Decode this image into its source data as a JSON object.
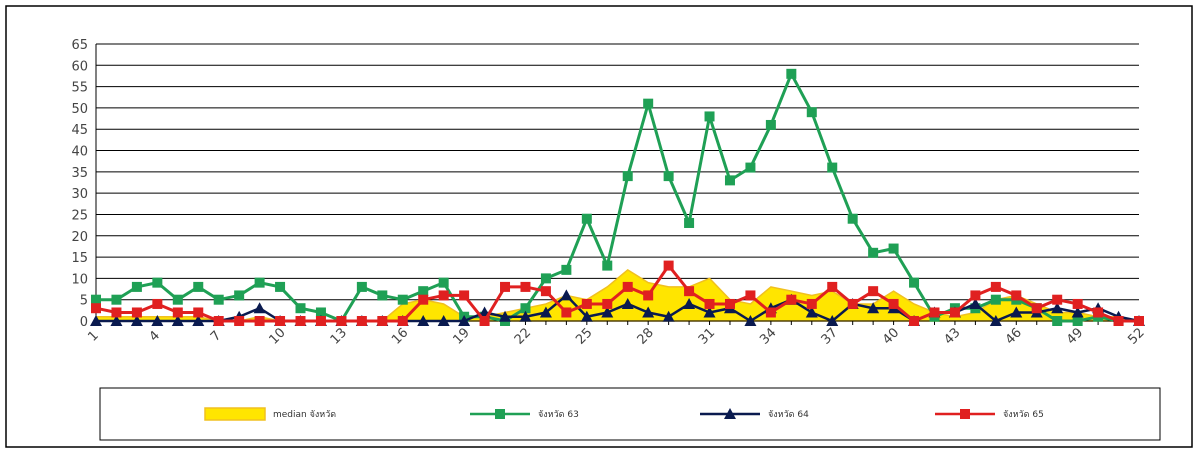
{
  "chart_data": {
    "type": "line",
    "title": "",
    "xlabel": "",
    "ylabel": "",
    "ylim": [
      0,
      65
    ],
    "yticks": [
      0,
      5,
      10,
      15,
      20,
      25,
      30,
      35,
      40,
      45,
      50,
      55,
      60,
      65
    ],
    "x": [
      1,
      2,
      3,
      4,
      5,
      6,
      7,
      8,
      9,
      10,
      11,
      12,
      13,
      14,
      15,
      16,
      17,
      18,
      19,
      20,
      21,
      22,
      23,
      24,
      25,
      26,
      27,
      28,
      29,
      30,
      31,
      32,
      33,
      34,
      35,
      36,
      37,
      38,
      39,
      40,
      41,
      42,
      43,
      44,
      45,
      46,
      47,
      48,
      49,
      50,
      51,
      52
    ],
    "xtick_labels": [
      "1",
      "4",
      "7",
      "10",
      "13",
      "16",
      "19",
      "22",
      "25",
      "28",
      "31",
      "34",
      "37",
      "40",
      "43",
      "46",
      "49",
      "52"
    ],
    "grid": true,
    "legend_position": "bottom",
    "series": [
      {
        "name": "median จังหวัด",
        "kind": "area",
        "color": "#FFE500",
        "edge_color": "#F0C020",
        "values": [
          1,
          1,
          1,
          1,
          1,
          1,
          0,
          0,
          1,
          0,
          0,
          0,
          0,
          0,
          0,
          4,
          5,
          4,
          1,
          1,
          2,
          3,
          4,
          6,
          5,
          8,
          12,
          9,
          8,
          8,
          10,
          5,
          4,
          8,
          7,
          6,
          7,
          4,
          4,
          7,
          4,
          2,
          1,
          2,
          5,
          6,
          4,
          2,
          2,
          1,
          1,
          0
        ]
      },
      {
        "name": "จังหวัด 63",
        "kind": "line",
        "color": "#1FA055",
        "marker": "square",
        "values": [
          5,
          5,
          8,
          9,
          5,
          8,
          5,
          6,
          9,
          8,
          3,
          2,
          0,
          8,
          6,
          5,
          7,
          9,
          1,
          1,
          0,
          3,
          10,
          12,
          24,
          13,
          34,
          51,
          34,
          23,
          48,
          33,
          36,
          46,
          58,
          49,
          36,
          24,
          16,
          17,
          9,
          1,
          3,
          3,
          5,
          5,
          3,
          0,
          0,
          1,
          0,
          0
        ]
      },
      {
        "name": "จังหวัด 64",
        "kind": "line",
        "color": "#0A1A4F",
        "marker": "triangle",
        "values": [
          0,
          0,
          0,
          0,
          0,
          0,
          0,
          1,
          3,
          0,
          0,
          0,
          0,
          0,
          0,
          0,
          0,
          0,
          0,
          2,
          1,
          1,
          2,
          6,
          1,
          2,
          4,
          2,
          1,
          4,
          2,
          3,
          0,
          3,
          5,
          2,
          0,
          4,
          3,
          3,
          0,
          2,
          2,
          4,
          0,
          2,
          2,
          3,
          2,
          3,
          1,
          0
        ]
      },
      {
        "name": "จังหวัด 65",
        "kind": "line",
        "color": "#E02020",
        "marker": "square",
        "values": [
          3,
          2,
          2,
          4,
          2,
          2,
          0,
          0,
          0,
          0,
          0,
          0,
          0,
          0,
          0,
          0,
          5,
          6,
          6,
          0,
          8,
          8,
          7,
          2,
          4,
          4,
          8,
          6,
          13,
          7,
          4,
          4,
          6,
          2,
          5,
          4,
          8,
          4,
          7,
          4,
          0,
          2,
          2,
          6,
          8,
          6,
          3,
          5,
          4,
          2,
          0,
          0
        ]
      }
    ]
  }
}
